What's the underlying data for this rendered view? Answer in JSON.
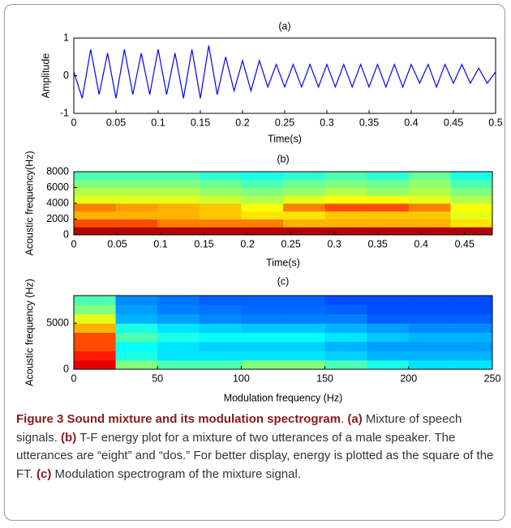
{
  "chart_data": [
    {
      "type": "line",
      "title": "(a)",
      "x_label": "Time(s)",
      "y_label": "Amplitude",
      "x": [
        0,
        0.01,
        0.02,
        0.03,
        0.04,
        0.05,
        0.06,
        0.07,
        0.08,
        0.09,
        0.1,
        0.11,
        0.12,
        0.13,
        0.14,
        0.15,
        0.16,
        0.17,
        0.18,
        0.19,
        0.2,
        0.21,
        0.22,
        0.23,
        0.24,
        0.25,
        0.26,
        0.27,
        0.28,
        0.29,
        0.3,
        0.31,
        0.32,
        0.33,
        0.34,
        0.35,
        0.36,
        0.37,
        0.38,
        0.39,
        0.4,
        0.41,
        0.42,
        0.43,
        0.44,
        0.45,
        0.46,
        0.47,
        0.48,
        0.49,
        0.5
      ],
      "values": [
        0.1,
        -0.6,
        0.7,
        -0.5,
        0.6,
        -0.6,
        0.7,
        -0.5,
        0.6,
        -0.5,
        0.7,
        -0.5,
        0.6,
        -0.6,
        0.7,
        -0.6,
        0.8,
        -0.5,
        0.5,
        -0.4,
        0.4,
        -0.4,
        0.4,
        -0.3,
        0.3,
        -0.3,
        0.3,
        -0.3,
        0.3,
        -0.3,
        0.3,
        -0.3,
        0.3,
        -0.3,
        0.3,
        -0.3,
        0.3,
        -0.3,
        0.3,
        -0.3,
        0.3,
        -0.2,
        0.3,
        -0.3,
        0.3,
        -0.2,
        0.3,
        -0.2,
        0.2,
        -0.2,
        0.1
      ],
      "color": "#0000ff",
      "xlim": [
        0,
        0.5
      ],
      "ylim": [
        -1,
        1
      ],
      "xticks": [
        0,
        0.05,
        0.1,
        0.15,
        0.2,
        0.25,
        0.3,
        0.35,
        0.4,
        0.45,
        0.5
      ],
      "yticks": [
        -1,
        0,
        1
      ]
    },
    {
      "type": "heatmap",
      "title": "(b)",
      "x_label": "Time(s)",
      "y_label": "Acoustic frequency(Hz)",
      "xlim": [
        0,
        0.482
      ],
      "ylim": [
        0,
        8000
      ],
      "xticks": [
        0,
        0.05,
        0.1,
        0.15,
        0.2,
        0.25,
        0.3,
        0.35,
        0.4,
        0.45
      ],
      "yticks": [
        0,
        2000,
        4000,
        6000,
        8000
      ],
      "z": [
        [
          0.95,
          0.95,
          0.95,
          0.95,
          0.95,
          0.95,
          0.95,
          0.95,
          0.95,
          0.95
        ],
        [
          0.8,
          0.8,
          0.75,
          0.75,
          0.75,
          0.7,
          0.7,
          0.7,
          0.7,
          0.65
        ],
        [
          0.7,
          0.7,
          0.7,
          0.68,
          0.65,
          0.65,
          0.68,
          0.68,
          0.68,
          0.6
        ],
        [
          0.75,
          0.72,
          0.7,
          0.68,
          0.62,
          0.75,
          0.8,
          0.8,
          0.75,
          0.62
        ],
        [
          0.6,
          0.6,
          0.6,
          0.58,
          0.55,
          0.6,
          0.62,
          0.62,
          0.6,
          0.55
        ],
        [
          0.55,
          0.55,
          0.55,
          0.52,
          0.5,
          0.52,
          0.55,
          0.52,
          0.55,
          0.5
        ],
        [
          0.5,
          0.5,
          0.5,
          0.48,
          0.45,
          0.48,
          0.5,
          0.48,
          0.52,
          0.45
        ],
        [
          0.45,
          0.45,
          0.45,
          0.42,
          0.4,
          0.42,
          0.45,
          0.42,
          0.48,
          0.4
        ]
      ]
    },
    {
      "type": "heatmap",
      "title": "(c)",
      "x_label": "Modulation frequency (Hz)",
      "y_label": "Acoustic frequency (Hz)",
      "xlim": [
        0,
        250
      ],
      "ylim": [
        0,
        8000
      ],
      "xticks": [
        0,
        50,
        100,
        150,
        200,
        250
      ],
      "yticks": [
        0,
        5000
      ],
      "z": [
        [
          0.9,
          0.5,
          0.45,
          0.45,
          0.5,
          0.5,
          0.45,
          0.4,
          0.35,
          0.35
        ],
        [
          0.85,
          0.4,
          0.35,
          0.35,
          0.35,
          0.35,
          0.33,
          0.3,
          0.3,
          0.3
        ],
        [
          0.8,
          0.38,
          0.35,
          0.33,
          0.33,
          0.33,
          0.3,
          0.28,
          0.28,
          0.28
        ],
        [
          0.8,
          0.45,
          0.4,
          0.38,
          0.38,
          0.38,
          0.35,
          0.32,
          0.3,
          0.3
        ],
        [
          0.7,
          0.4,
          0.35,
          0.33,
          0.32,
          0.32,
          0.3,
          0.28,
          0.26,
          0.26
        ],
        [
          0.6,
          0.3,
          0.28,
          0.26,
          0.25,
          0.25,
          0.25,
          0.22,
          0.22,
          0.22
        ],
        [
          0.5,
          0.28,
          0.25,
          0.24,
          0.23,
          0.23,
          0.22,
          0.2,
          0.2,
          0.2
        ],
        [
          0.45,
          0.26,
          0.24,
          0.22,
          0.22,
          0.22,
          0.2,
          0.2,
          0.2,
          0.2
        ]
      ]
    }
  ],
  "caption": {
    "segments": [
      {
        "text": "Figure 3 Sound mixture and its modulation spectrogram",
        "bold": true
      },
      {
        "text": ". "
      },
      {
        "text": "(a)",
        "bold": true
      },
      {
        "text": " Mixture of speech signals. "
      },
      {
        "text": "(b)",
        "bold": true
      },
      {
        "text": " T-F energy plot for a mixture of two utterances of a male speaker. The utterances are “eight” and “dos.” For better display, energy is plotted as the square of the FT. "
      },
      {
        "text": "(c)",
        "bold": true
      },
      {
        "text": " Modulation spectrogram of the mixture signal."
      }
    ]
  }
}
